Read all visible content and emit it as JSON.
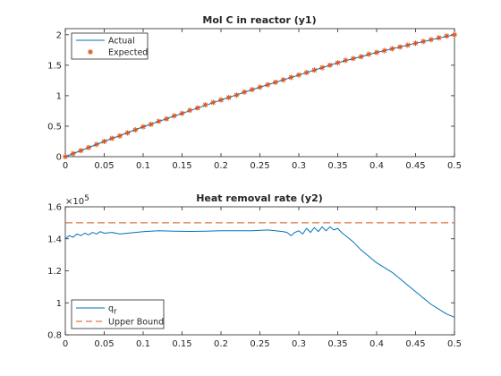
{
  "chart_data": [
    {
      "type": "line",
      "title": "Mol C in reactor (y1)",
      "xlabel": "",
      "ylabel": "",
      "xlim": [
        0,
        0.5
      ],
      "ylim": [
        0,
        2.1
      ],
      "xticks": [
        0,
        0.05,
        0.1,
        0.15,
        0.2,
        0.25,
        0.3,
        0.35,
        0.4,
        0.45,
        0.5
      ],
      "xtick_labels": [
        "0",
        "0.05",
        "0.1",
        "0.15",
        "0.2",
        "0.25",
        "0.3",
        "0.35",
        "0.4",
        "0.45",
        "0.5"
      ],
      "yticks": [
        0,
        0.5,
        1,
        1.5,
        2
      ],
      "ytick_labels": [
        "0",
        "0.5",
        "1",
        "1.5",
        "2"
      ],
      "grid": false,
      "legend_position": "top-left",
      "legend": [
        "Actual",
        "Expected"
      ],
      "series": [
        {
          "name": "Actual",
          "style": "line",
          "color": "#0072BD",
          "x": [
            0,
            0.05,
            0.1,
            0.15,
            0.2,
            0.25,
            0.3,
            0.35,
            0.4,
            0.45,
            0.5
          ],
          "y": [
            0,
            0.25,
            0.49,
            0.71,
            0.93,
            1.14,
            1.34,
            1.54,
            1.71,
            1.86,
            2.0
          ]
        },
        {
          "name": "Expected",
          "style": "markers",
          "marker": "asterisk",
          "color": "#D95319",
          "x": [
            0,
            0.01,
            0.02,
            0.03,
            0.04,
            0.05,
            0.06,
            0.07,
            0.08,
            0.09,
            0.1,
            0.11,
            0.12,
            0.13,
            0.14,
            0.15,
            0.16,
            0.17,
            0.18,
            0.19,
            0.2,
            0.21,
            0.22,
            0.23,
            0.24,
            0.25,
            0.26,
            0.27,
            0.28,
            0.29,
            0.3,
            0.31,
            0.32,
            0.33,
            0.34,
            0.35,
            0.36,
            0.37,
            0.38,
            0.39,
            0.4,
            0.41,
            0.42,
            0.43,
            0.44,
            0.45,
            0.46,
            0.47,
            0.48,
            0.49,
            0.5
          ],
          "y": [
            0,
            0.05,
            0.1,
            0.15,
            0.2,
            0.25,
            0.3,
            0.34,
            0.39,
            0.44,
            0.49,
            0.53,
            0.58,
            0.62,
            0.67,
            0.71,
            0.76,
            0.8,
            0.85,
            0.89,
            0.93,
            0.97,
            1.01,
            1.06,
            1.1,
            1.14,
            1.18,
            1.22,
            1.26,
            1.3,
            1.34,
            1.38,
            1.42,
            1.46,
            1.5,
            1.54,
            1.58,
            1.61,
            1.64,
            1.68,
            1.71,
            1.74,
            1.77,
            1.8,
            1.83,
            1.86,
            1.89,
            1.92,
            1.95,
            1.98,
            2.0
          ]
        }
      ]
    },
    {
      "type": "line",
      "title": "Heat removal rate (y2)",
      "xlabel": "",
      "ylabel": "",
      "xlim": [
        0,
        0.5
      ],
      "ylim": [
        0.8,
        1.6
      ],
      "y_exponent_base": "×10",
      "y_exponent_power": "5",
      "xticks": [
        0,
        0.05,
        0.1,
        0.15,
        0.2,
        0.25,
        0.3,
        0.35,
        0.4,
        0.45,
        0.5
      ],
      "xtick_labels": [
        "0",
        "0.05",
        "0.1",
        "0.15",
        "0.2",
        "0.25",
        "0.3",
        "0.35",
        "0.4",
        "0.45",
        "0.5"
      ],
      "yticks": [
        0.8,
        1,
        1.2,
        1.4,
        1.6
      ],
      "ytick_labels": [
        "0.8",
        "1",
        "1.2",
        "1.4",
        "1.6"
      ],
      "grid": false,
      "legend_position": "bottom-left",
      "legend": [
        "q",
        "Upper Bound"
      ],
      "legend_subscript": "r",
      "series": [
        {
          "name": "q_r",
          "style": "line",
          "color": "#0072BD",
          "x": [
            0,
            0.005,
            0.01,
            0.015,
            0.02,
            0.025,
            0.03,
            0.035,
            0.04,
            0.045,
            0.05,
            0.06,
            0.07,
            0.08,
            0.09,
            0.1,
            0.12,
            0.14,
            0.16,
            0.18,
            0.2,
            0.22,
            0.24,
            0.26,
            0.27,
            0.28,
            0.285,
            0.29,
            0.295,
            0.3,
            0.305,
            0.31,
            0.315,
            0.32,
            0.325,
            0.33,
            0.335,
            0.34,
            0.345,
            0.35,
            0.355,
            0.36,
            0.37,
            0.38,
            0.39,
            0.4,
            0.41,
            0.42,
            0.43,
            0.44,
            0.45,
            0.46,
            0.47,
            0.48,
            0.49,
            0.5
          ],
          "y": [
            1.4,
            1.42,
            1.41,
            1.43,
            1.42,
            1.435,
            1.425,
            1.44,
            1.43,
            1.445,
            1.435,
            1.44,
            1.43,
            1.435,
            1.44,
            1.445,
            1.45,
            1.448,
            1.446,
            1.448,
            1.45,
            1.45,
            1.45,
            1.455,
            1.45,
            1.445,
            1.44,
            1.42,
            1.44,
            1.45,
            1.43,
            1.465,
            1.44,
            1.47,
            1.445,
            1.475,
            1.45,
            1.475,
            1.455,
            1.465,
            1.44,
            1.42,
            1.38,
            1.33,
            1.29,
            1.25,
            1.22,
            1.19,
            1.15,
            1.11,
            1.07,
            1.03,
            0.99,
            0.96,
            0.93,
            0.91
          ]
        },
        {
          "name": "Upper Bound",
          "style": "dashed",
          "color": "#D95319",
          "x": [
            0,
            0.5
          ],
          "y": [
            1.5,
            1.5
          ]
        }
      ]
    }
  ]
}
